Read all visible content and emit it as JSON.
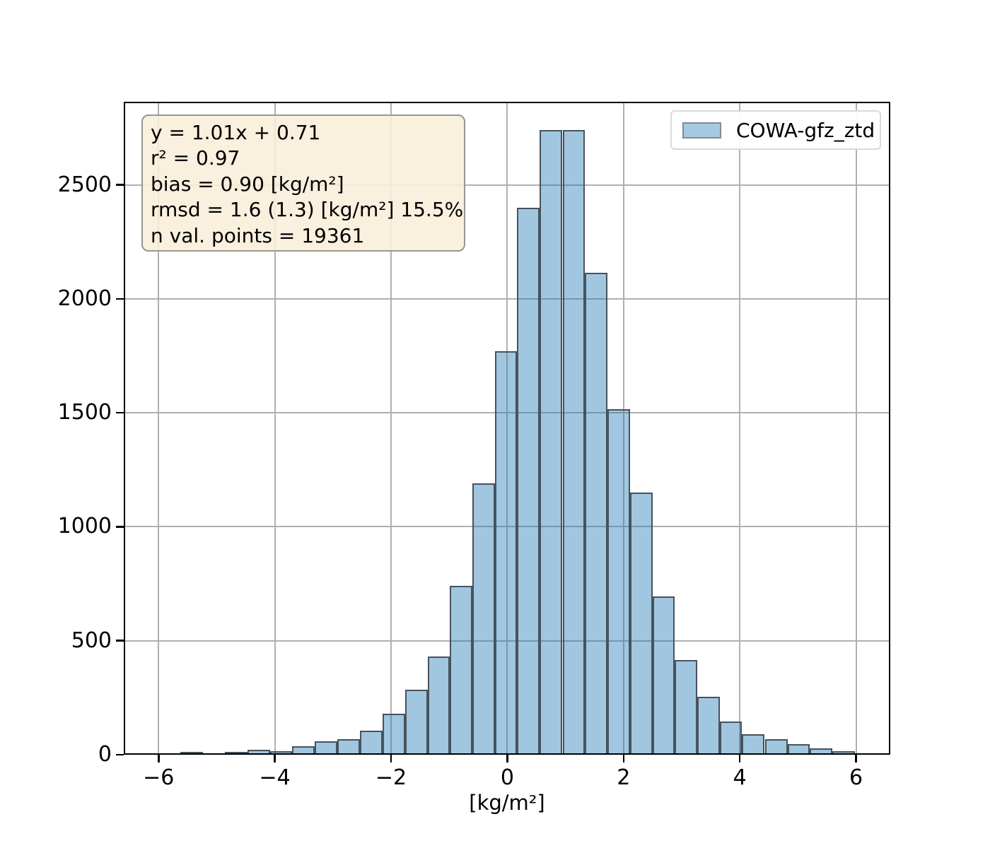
{
  "chart_data": {
    "type": "bar",
    "subtype": "histogram",
    "title": "",
    "xlabel": "[kg/m²]",
    "ylabel": "",
    "grid": true,
    "legend_position": "upper right",
    "legend_entries": [
      "COWA-gfz_ztd"
    ],
    "xlim": [
      -6.6,
      6.59
    ],
    "ylim": [
      0,
      2865
    ],
    "xtick_values": [
      -6,
      -4,
      -2,
      0,
      2,
      4,
      6
    ],
    "xtick_labels": [
      "−6",
      "−4",
      "−2",
      "0",
      "2",
      "4",
      "6"
    ],
    "ytick_values": [
      0,
      500,
      1000,
      1500,
      2000,
      2500
    ],
    "ytick_labels": [
      "0",
      "500",
      "1000",
      "1500",
      "2000",
      "2500"
    ],
    "series": [
      {
        "name": "COWA-gfz_ztd",
        "bin_edges": [
          -5.63,
          -5.24,
          -4.86,
          -4.47,
          -4.08,
          -3.7,
          -3.31,
          -2.92,
          -2.54,
          -2.15,
          -1.76,
          -1.37,
          -0.99,
          -0.6,
          -0.21,
          0.17,
          0.56,
          0.95,
          1.33,
          1.72,
          2.11,
          2.5,
          2.88,
          3.27,
          3.66,
          4.04,
          4.43,
          4.82,
          5.2,
          5.59,
          5.98
        ],
        "counts": [
          12,
          6,
          13,
          22,
          16,
          37,
          60,
          68,
          105,
          180,
          285,
          430,
          740,
          1190,
          1770,
          2400,
          2740,
          2740,
          2115,
          1515,
          1150,
          695,
          415,
          255,
          145,
          90,
          67,
          48,
          28,
          16
        ]
      }
    ],
    "colors": {
      "bar_fill": "#a6c9e2",
      "bar_fill_rgba": "rgba(31,119,180,0.42)",
      "bar_edge": "#46535e",
      "grid": "#b0b0b0",
      "spine": "#000000"
    }
  },
  "annotation_box": {
    "bg": "#f8eeda",
    "border": "#9a968e",
    "lines": [
      "y = 1.01x + 0.71",
      "r² = 0.97",
      "bias = 0.90 [kg/m²]",
      "rmsd = 1.6 (1.3) [kg/m²] 15.5%",
      "n val. points = 19361"
    ]
  },
  "legend": {
    "label": "COWA-gfz_ztd",
    "swatch_fill": "#a6c9e2",
    "swatch_border": "#7f8c96",
    "border": "#d9d9d9"
  }
}
